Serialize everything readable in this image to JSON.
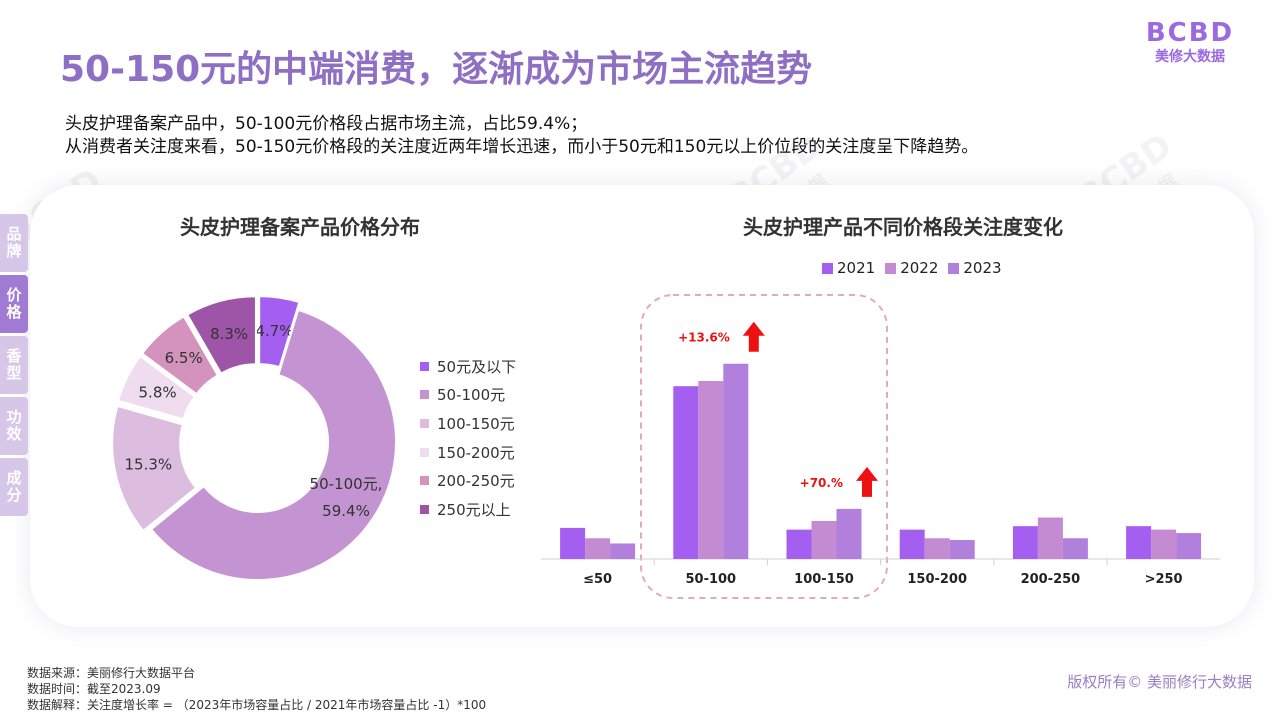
{
  "header": {
    "title": "50-150元的中端消费，逐渐成为市场主流趋势",
    "logo_mark": "BCBD",
    "logo_text": "美修大数据"
  },
  "summary": {
    "line1": "头皮护理备案产品中，50-100元价格段占据市场主流，占比59.4%；",
    "line2": "从消费者关注度来看，50-150元价格段的关注度近两年增长迅速，而小于50元和150元以上价位段的关注度呈下降趋势。"
  },
  "side_tabs": [
    {
      "label": "品牌",
      "active": false
    },
    {
      "label": "价格",
      "active": true
    },
    {
      "label": "香型",
      "active": false
    },
    {
      "label": "功效",
      "active": false
    },
    {
      "label": "成分",
      "active": false
    }
  ],
  "watermark": {
    "mark": "BCBD",
    "text": "美修大数据"
  },
  "colors": {
    "accent": "#8f6fc4",
    "y2021": "#a55ff0",
    "y2022": "#c48bd2",
    "y2023": "#b080dc",
    "arrow": "#ee1111"
  },
  "chart_data": [
    {
      "type": "pie",
      "title": "头皮护理备案产品价格分布",
      "categories": [
        "50元及以下",
        "50-100元",
        "100-150元",
        "150-200元",
        "200-250元",
        "250元以上"
      ],
      "values": [
        4.7,
        59.4,
        15.3,
        5.8,
        6.5,
        8.3
      ],
      "value_labels": [
        "4.7%",
        "50-100元,",
        "15.3%",
        "5.8%",
        "6.5%",
        "8.3%"
      ],
      "center_label_extra": "59.4%",
      "colors": [
        "#a55ff0",
        "#c494d2",
        "#dcbde0",
        "#efdcee",
        "#d493bd",
        "#9e55a8"
      ],
      "legend_position": "right"
    },
    {
      "type": "bar",
      "title": "头皮护理产品不同价格段关注度变化",
      "categories": [
        "≤50",
        "50-100",
        "100-150",
        "150-200",
        "200-250",
        ">250"
      ],
      "series": [
        {
          "name": "2021",
          "values": [
            18,
            100,
            17,
            17,
            19,
            19
          ]
        },
        {
          "name": "2022",
          "values": [
            12,
            103,
            22,
            12,
            24,
            17
          ]
        },
        {
          "name": "2023",
          "values": [
            9,
            113,
            29,
            11,
            12,
            15
          ]
        }
      ],
      "annotations": [
        {
          "category": "50-100",
          "text": "+13.6%"
        },
        {
          "category": "100-150",
          "text": "+70.%"
        }
      ],
      "highlight": [
        "50-100",
        "100-150"
      ],
      "legend_position": "top",
      "ylim": [
        0,
        125
      ],
      "grid": false
    }
  ],
  "footer": {
    "line1": "数据来源：美丽修行大数据平台",
    "line2": "数据时间：截至2023.09",
    "line3": "数据解释：关注度增长率 = （2023年市场容量占比 / 2021年市场容量占比 -1）*100",
    "copyright": "版权所有© 美丽修行大数据"
  }
}
